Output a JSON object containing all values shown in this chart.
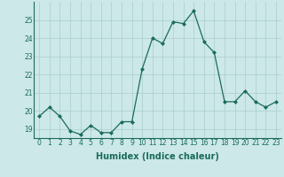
{
  "x": [
    0,
    1,
    2,
    3,
    4,
    5,
    6,
    7,
    8,
    9,
    10,
    11,
    12,
    13,
    14,
    15,
    16,
    17,
    18,
    19,
    20,
    21,
    22,
    23
  ],
  "y": [
    19.7,
    20.2,
    19.7,
    18.9,
    18.7,
    19.2,
    18.8,
    18.8,
    19.4,
    19.4,
    22.3,
    24.0,
    23.7,
    24.9,
    24.8,
    25.5,
    23.8,
    23.2,
    20.5,
    20.5,
    21.1,
    20.5,
    20.2,
    20.5
  ],
  "line_color": "#1a6b5a",
  "marker": "D",
  "markersize": 2.0,
  "linewidth": 0.9,
  "xlabel": "Humidex (Indice chaleur)",
  "xlabel_fontsize": 7,
  "ylim": [
    18.5,
    26.0
  ],
  "yticks": [
    19,
    20,
    21,
    22,
    23,
    24,
    25
  ],
  "xticks": [
    0,
    1,
    2,
    3,
    4,
    5,
    6,
    7,
    8,
    9,
    10,
    11,
    12,
    13,
    14,
    15,
    16,
    17,
    18,
    19,
    20,
    21,
    22,
    23
  ],
  "bg_color": "#cce8e8",
  "grid_color": "#aacece",
  "tick_fontsize": 5.5,
  "tick_color": "#1a6b5a",
  "xlabel_color": "#1a6b5a"
}
